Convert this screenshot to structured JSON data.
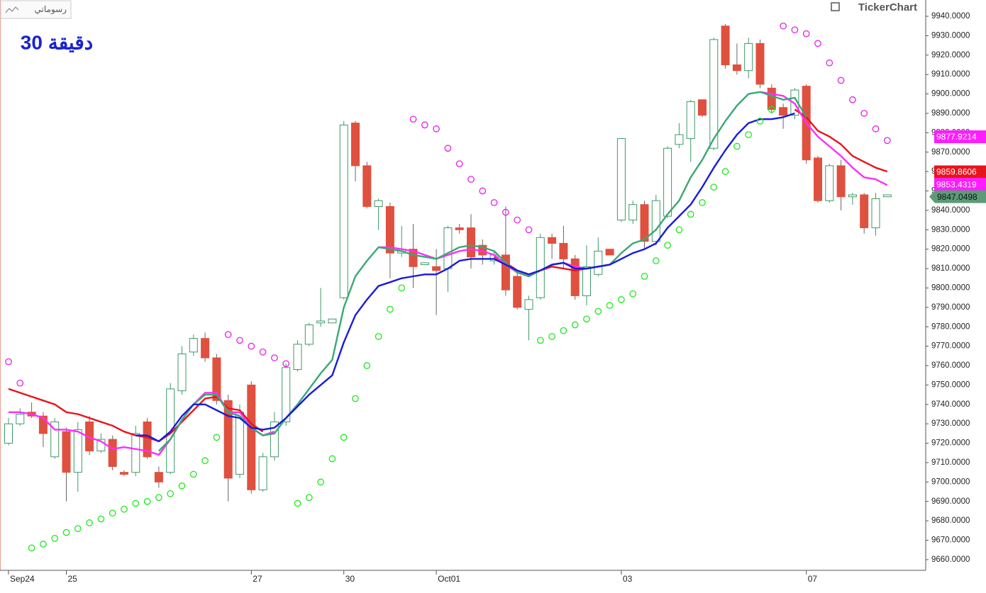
{
  "toolbar": {
    "button": "رسوماتي"
  },
  "watermark": "TickerChart",
  "chart_data": {
    "type": "candlestick",
    "title": "30 دقيقة",
    "categories": [
      "Sep24",
      null,
      null,
      null,
      null,
      "25",
      null,
      null,
      null,
      null,
      null,
      null,
      null,
      null,
      null,
      null,
      null,
      null,
      null,
      null,
      null,
      "27",
      null,
      null,
      null,
      null,
      null,
      null,
      null,
      "30",
      null,
      null,
      null,
      null,
      null,
      null,
      null,
      "Oct01",
      null,
      null,
      null,
      null,
      null,
      null,
      null,
      null,
      null,
      null,
      null,
      null,
      null,
      null,
      null,
      "03",
      null,
      null,
      null,
      null,
      null,
      null,
      null,
      null,
      null,
      null,
      null,
      null,
      null,
      null,
      null,
      "07",
      null,
      null,
      null,
      null,
      null,
      null,
      null
    ],
    "open": [
      9720,
      9730,
      9736,
      9734,
      9713,
      9726,
      9705,
      9731,
      9716,
      9722,
      9705,
      9705,
      9731,
      9705,
      9705,
      9747,
      9767,
      9774,
      9764,
      9742,
      9704,
      9750,
      9696,
      9713,
      9731,
      9758,
      9771,
      9782,
      9782,
      9795,
      9885,
      9863,
      9842,
      9842,
      9818,
      9820,
      9812,
      9811,
      9810,
      9831,
      9831,
      9822,
      9814,
      9817,
      9806,
      9789,
      9795,
      9826,
      9823,
      9815,
      9796,
      9807,
      9820,
      9835,
      9835,
      9843,
      9824,
      9837,
      9874,
      9877,
      9897,
      9872,
      9935,
      9915,
      9912,
      9926,
      9903,
      9893,
      9889,
      9904,
      9867,
      9845,
      9863,
      9847,
      9848,
      9831,
      9847
    ],
    "high": [
      9733,
      9738,
      9741,
      9736,
      9733,
      9728,
      9731,
      9734,
      9725,
      9724,
      9706,
      9729,
      9733,
      9708,
      9751,
      9770,
      9776,
      9777,
      9766,
      9745,
      9740,
      9752,
      9715,
      9736,
      9761,
      9773,
      9782,
      9800,
      9784,
      9886,
      9886,
      9865,
      9846,
      9844,
      9832,
      9833,
      9813,
      9820,
      9832,
      9833,
      9838,
      9825,
      9819,
      9842,
      9808,
      9796,
      9828,
      9828,
      9832,
      9817,
      9822,
      9826,
      9820,
      9877,
      9845,
      9845,
      9848,
      9873,
      9885,
      9897,
      9897,
      9929,
      9936,
      9926,
      9929,
      9928,
      9905,
      9895,
      9903,
      9905,
      9868,
      9864,
      9866,
      9849,
      9849,
      9849,
      9848
    ],
    "low": [
      9719,
      9729,
      9733,
      9718,
      9712,
      9690,
      9695,
      9714,
      9715,
      9706,
      9703,
      9703,
      9712,
      9697,
      9704,
      9745,
      9765,
      9762,
      9740,
      9690,
      9702,
      9694,
      9695,
      9711,
      9729,
      9757,
      9770,
      9780,
      9782,
      9794,
      9855,
      9841,
      9830,
      9805,
      9816,
      9800,
      9812,
      9786,
      9798,
      9828,
      9810,
      9812,
      9812,
      9796,
      9789,
      9773,
      9794,
      9815,
      9810,
      9794,
      9791,
      9806,
      9817,
      9834,
      9833,
      9820,
      9822,
      9836,
      9872,
      9865,
      9888,
      9871,
      9913,
      9910,
      9908,
      9903,
      9890,
      9882,
      9887,
      9864,
      9844,
      9844,
      9840,
      9843,
      9828,
      9827,
      9847
    ],
    "close": [
      9730,
      9735,
      9734,
      9725,
      9731,
      9705,
      9727,
      9716,
      9722,
      9708,
      9704,
      9725,
      9713,
      9700,
      9748,
      9766,
      9774,
      9764,
      9742,
      9702,
      9736,
      9696,
      9713,
      9731,
      9759,
      9771,
      9781,
      9783,
      9784,
      9884,
      9863,
      9842,
      9845,
      9818,
      9820,
      9811,
      9813,
      9809,
      9831,
      9830,
      9816,
      9817,
      9817,
      9799,
      9790,
      9794,
      9826,
      9823,
      9815,
      9796,
      9811,
      9819,
      9817,
      9877,
      9843,
      9824,
      9845,
      9872,
      9879,
      9896,
      9889,
      9928,
      9915,
      9912,
      9926,
      9905,
      9892,
      9889,
      9902,
      9866,
      9845,
      9863,
      9847,
      9848,
      9831,
      9846,
      9848
    ],
    "up_color": "#3d9a68",
    "down_color": "#e0503e",
    "series": [
      {
        "color": "#e8141c",
        "values": [
          9748,
          9746,
          9744,
          9742,
          9740,
          9736,
          9735,
          9733,
          9731,
          9729,
          9726,
          9724,
          9723,
          9721,
          9725,
          9731,
          9737,
          9743,
          9744,
          9738,
          9737,
          9730,
          9726,
          null,
          null,
          null,
          null,
          null,
          null,
          null,
          null,
          null,
          null,
          null,
          null,
          null,
          null,
          null,
          null,
          null,
          null,
          null,
          9816,
          9813,
          9809,
          9807,
          9809,
          9811,
          9810,
          9809,
          9810,
          9811,
          9812,
          null,
          null,
          null,
          null,
          null,
          null,
          null,
          null,
          null,
          null,
          null,
          null,
          null,
          null,
          null,
          9892,
          9888,
          9881,
          9878,
          9874,
          9868,
          9865,
          9862,
          9860
        ]
      },
      {
        "color": "#ff2cff",
        "values": [
          9736,
          9736,
          9735,
          9733,
          9727,
          9727,
          9726,
          9723,
          9721,
          9717,
          9718,
          9717,
          9716,
          9714,
          9722,
          9732,
          9740,
          9746,
          9746,
          9736,
          9736,
          9728,
          9724,
          9726,
          null,
          null,
          null,
          null,
          null,
          null,
          null,
          null,
          9821,
          9821,
          9820,
          9819,
          9817,
          9815,
          9817,
          9819,
          9820,
          9819,
          9817,
          9812,
          9808,
          9806,
          9809,
          9812,
          9813,
          9811,
          9810,
          9811,
          9812,
          null,
          null,
          null,
          null,
          null,
          null,
          null,
          null,
          null,
          null,
          null,
          null,
          9901,
          9900,
          9899,
          9895,
          9885,
          9878,
          9873,
          9868,
          9862,
          9857,
          9856,
          9853
        ]
      },
      {
        "color": "#3aa872",
        "values": [
          null,
          null,
          null,
          null,
          null,
          null,
          null,
          null,
          null,
          null,
          null,
          null,
          null,
          9716,
          9722,
          9732,
          9740,
          9745,
          9745,
          9736,
          9734,
          9728,
          9724,
          9725,
          9733,
          9740,
          9748,
          9756,
          9763,
          9790,
          9806,
          9814,
          9821,
          9820,
          9819,
          9817,
          9816,
          9815,
          9818,
          9821,
          9822,
          9821,
          9819,
          9813,
          9808,
          9806,
          9809,
          9812,
          9813,
          9810,
          9810,
          9811,
          9812,
          9818,
          9823,
          9825,
          9830,
          9838,
          9845,
          9857,
          9866,
          9877,
          9886,
          9894,
          9900,
          9901,
          9899,
          9897,
          9898,
          9888,
          null,
          null,
          null,
          null,
          null,
          null,
          null
        ]
      },
      {
        "color": "#1a1adc",
        "values": [
          null,
          null,
          null,
          null,
          null,
          null,
          null,
          null,
          null,
          null,
          null,
          9724,
          9724,
          9721,
          9726,
          9734,
          9740,
          9740,
          9737,
          9734,
          9733,
          9728,
          9727,
          9728,
          9733,
          9739,
          9745,
          9750,
          9755,
          9772,
          9786,
          9794,
          9801,
          9803,
          9805,
          9806,
          9807,
          9807,
          9810,
          9814,
          9815,
          9815,
          9815,
          9812,
          9809,
          9807,
          9809,
          9812,
          9813,
          9810,
          9810,
          9811,
          9812,
          9815,
          9818,
          9820,
          9823,
          9831,
          9837,
          9843,
          9852,
          9862,
          9871,
          9879,
          9885,
          9887,
          9887,
          9888,
          9890,
          null,
          null,
          null,
          null,
          null,
          null,
          null,
          null
        ]
      }
    ],
    "sar": [
      {
        "color": "#1ee81e",
        "values": [
          null,
          null,
          9666,
          9668,
          9671,
          9674,
          9676,
          9679,
          9681,
          9684,
          9686,
          9689,
          9690,
          9692,
          9694,
          9698,
          9704,
          9711,
          9723,
          null,
          null,
          null,
          null,
          null,
          null,
          9689,
          9692,
          9700,
          9712,
          9723,
          9743,
          9760,
          9775,
          9789,
          9800,
          null,
          null,
          null,
          null,
          null,
          null,
          null,
          null,
          null,
          null,
          null,
          9773,
          9775,
          9778,
          9781,
          9784,
          9788,
          9791,
          9794,
          9797,
          9806,
          9814,
          9822,
          9830,
          9838,
          9844,
          9852,
          9860,
          9873,
          9879,
          9886,
          9892,
          null,
          null,
          null,
          null,
          null,
          null,
          null,
          null,
          null,
          null
        ]
      },
      {
        "color": "#e81ee8",
        "values": [
          9762,
          9751,
          null,
          null,
          null,
          null,
          null,
          null,
          null,
          null,
          null,
          null,
          null,
          null,
          null,
          null,
          null,
          null,
          null,
          9776,
          9773,
          9770,
          9767,
          9764,
          9761,
          null,
          null,
          null,
          null,
          null,
          null,
          null,
          null,
          null,
          null,
          9887,
          9884,
          9882,
          9872,
          9864,
          9856,
          9850,
          9844,
          9839,
          9835,
          9830,
          null,
          null,
          null,
          null,
          null,
          null,
          null,
          null,
          null,
          null,
          null,
          null,
          null,
          null,
          null,
          null,
          null,
          null,
          null,
          null,
          null,
          9935,
          9933,
          9931,
          9926,
          9916,
          9907,
          9897,
          9890,
          9882,
          9876
        ]
      }
    ],
    "price_labels": [
      {
        "value": 9877.9214,
        "color": "#ff1cff"
      },
      {
        "value": 9859.8606,
        "color": "#e8141c"
      },
      {
        "value": 9853.4319,
        "color": "#ff1cff"
      },
      {
        "value": 9847.0498,
        "color": "#5c9a78"
      }
    ],
    "ylim": [
      9654.5,
      9948.4
    ],
    "yticks": [
      {
        "value": 9660,
        "label": "9660.0000"
      },
      {
        "value": 9670,
        "label": "9670.0000"
      },
      {
        "value": 9680,
        "label": "9680.0000"
      },
      {
        "value": 9690,
        "label": "9690.0000"
      },
      {
        "value": 9700,
        "label": "9700.0000"
      },
      {
        "value": 9710,
        "label": "9710.0000"
      },
      {
        "value": 9720,
        "label": "9720.0000"
      },
      {
        "value": 9730,
        "label": "9730.0000"
      },
      {
        "value": 9740,
        "label": "9740.0000"
      },
      {
        "value": 9750,
        "label": "9750.0000"
      },
      {
        "value": 9760,
        "label": "9760.0000"
      },
      {
        "value": 9770,
        "label": "9770.0000"
      },
      {
        "value": 9780,
        "label": "9780.0000"
      },
      {
        "value": 9790,
        "label": "9790.0000"
      },
      {
        "value": 9800,
        "label": "9800.0000"
      },
      {
        "value": 9810,
        "label": "9810.0000"
      },
      {
        "value": 9820,
        "label": "9820.0000"
      },
      {
        "value": 9830,
        "label": "9830.0000"
      },
      {
        "value": 9840,
        "label": "9840.0000"
      },
      {
        "value": 9850,
        "label": "9850.0000"
      },
      {
        "value": 9860,
        "label": "9860.0000"
      },
      {
        "value": 9870,
        "label": "9870.0000"
      },
      {
        "value": 9880,
        "label": "9880.0000"
      },
      {
        "value": 9890,
        "label": "9890.0000"
      },
      {
        "value": 9900,
        "label": "9900.0000"
      },
      {
        "value": 9910,
        "label": "9910.0000"
      },
      {
        "value": 9920,
        "label": "9920.0000"
      },
      {
        "value": 9930,
        "label": "9930.0000"
      },
      {
        "value": 9940,
        "label": "9940.0000"
      }
    ]
  }
}
